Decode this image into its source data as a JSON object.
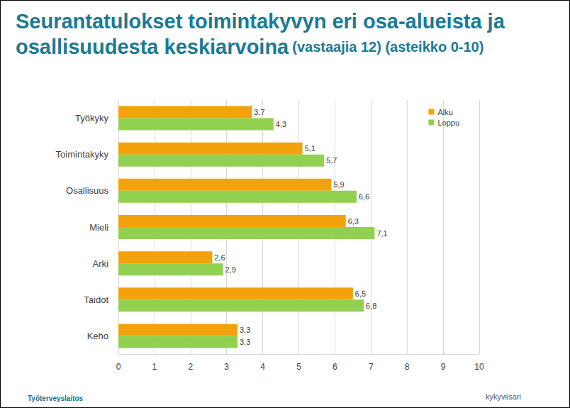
{
  "chart_data": {
    "type": "bar",
    "orientation": "horizontal",
    "title": "Seurantatulokset toimintakyvyn eri osa-alueista ja\nosallisuudesta keskiarvoina",
    "subtitle": "(vastaajia 12) (asteikko 0-10)",
    "categories": [
      "Työkyky",
      "Toimintakyky",
      "Osallisuus",
      "Mieli",
      "Arki",
      "Taidot",
      "Keho"
    ],
    "series": [
      {
        "name": "Alku",
        "color": "#f4a20c",
        "values": [
          3.7,
          5.1,
          5.9,
          6.3,
          2.6,
          6.5,
          3.3
        ],
        "value_labels": [
          "3,7",
          "5,1",
          "5,9",
          "6,3",
          "2,6",
          "6,5",
          "3,3"
        ]
      },
      {
        "name": "Loppu",
        "color": "#92d050",
        "values": [
          4.3,
          5.7,
          6.6,
          7.1,
          2.9,
          6.8,
          3.3
        ],
        "value_labels": [
          "4,3",
          "5,7",
          "6,6",
          "7,1",
          "2,9",
          "6,8",
          "3,3"
        ]
      }
    ],
    "xlim": [
      0,
      10
    ],
    "xticks": [
      0,
      1,
      2,
      3,
      4,
      5,
      6,
      7,
      8,
      9,
      10
    ],
    "grid": true,
    "legend": "top-right",
    "data_labels": true
  },
  "footer": [
    "Työterveyslaitos",
    "kykyviisari"
  ]
}
